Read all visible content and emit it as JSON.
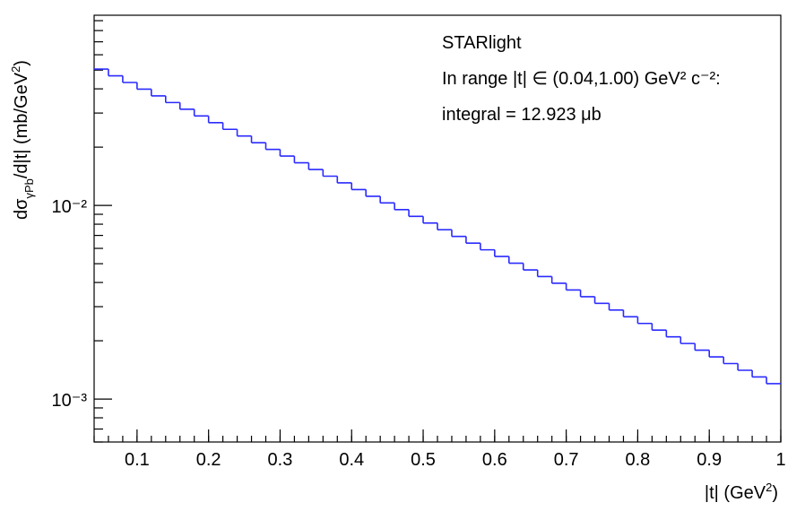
{
  "chart_data": {
    "type": "histogram",
    "y_label": {
      "main": "dσ",
      "sub": "γPb",
      "rest": "/d|t| (mb/GeV",
      "sup": "2",
      "end": ")"
    },
    "x_label": {
      "main": "|t| (GeV",
      "sup": "2",
      "end": ")"
    },
    "annotations": [
      "STARlight",
      "In range |t| ∈ (0.04,1.00) GeV² c⁻²:",
      "integral = 12.923 μb"
    ],
    "bins": [
      0.04,
      0.06,
      0.08,
      0.1,
      0.12,
      0.14,
      0.16,
      0.18,
      0.2,
      0.22,
      0.24,
      0.26,
      0.28,
      0.3,
      0.32,
      0.34,
      0.36,
      0.38,
      0.4,
      0.42,
      0.44,
      0.46,
      0.48,
      0.5,
      0.52,
      0.54,
      0.56,
      0.58,
      0.6,
      0.62,
      0.64,
      0.66,
      0.68,
      0.7,
      0.72,
      0.74,
      0.76,
      0.78,
      0.8,
      0.82,
      0.84,
      0.86,
      0.88,
      0.9,
      0.92,
      0.94,
      0.96,
      0.98,
      1.0
    ],
    "values": [
      0.0506,
      0.04673,
      0.04315,
      0.03985,
      0.0368,
      0.03399,
      0.03139,
      0.02898,
      0.02677,
      0.02472,
      0.02283,
      0.02108,
      0.01947,
      0.01798,
      0.0166,
      0.01533,
      0.01416,
      0.01308,
      0.01208,
      0.01115,
      0.0103,
      0.009511,
      0.008783,
      0.008111,
      0.00749,
      0.006917,
      0.006388,
      0.005899,
      0.005448,
      0.005031,
      0.004646,
      0.004291,
      0.003962,
      0.003659,
      0.003379,
      0.003121,
      0.002882,
      0.002661,
      0.002458,
      0.00227,
      0.002096,
      0.001936,
      0.001788,
      0.001651,
      0.001525,
      0.001408,
      0.0013,
      0.001201
    ],
    "color": "#2a2aff",
    "xlim": [
      0.04,
      1.0
    ],
    "xticks": [
      0.1,
      0.2,
      0.3,
      0.4,
      0.5,
      0.6,
      0.7,
      0.8,
      0.9,
      1
    ],
    "ylim": [
      0.0006,
      0.096
    ],
    "yticks": [
      {
        "value": 0.01,
        "label": "10⁻²"
      },
      {
        "value": 0.001,
        "label": "10⁻³"
      }
    ],
    "y_minor_ticks": [
      0.0006,
      0.0007,
      0.0008,
      0.0009,
      0.002,
      0.003,
      0.004,
      0.005,
      0.006,
      0.007,
      0.008,
      0.009,
      0.02,
      0.03,
      0.04,
      0.05,
      0.06,
      0.07,
      0.08,
      0.09
    ],
    "log_y": true
  }
}
